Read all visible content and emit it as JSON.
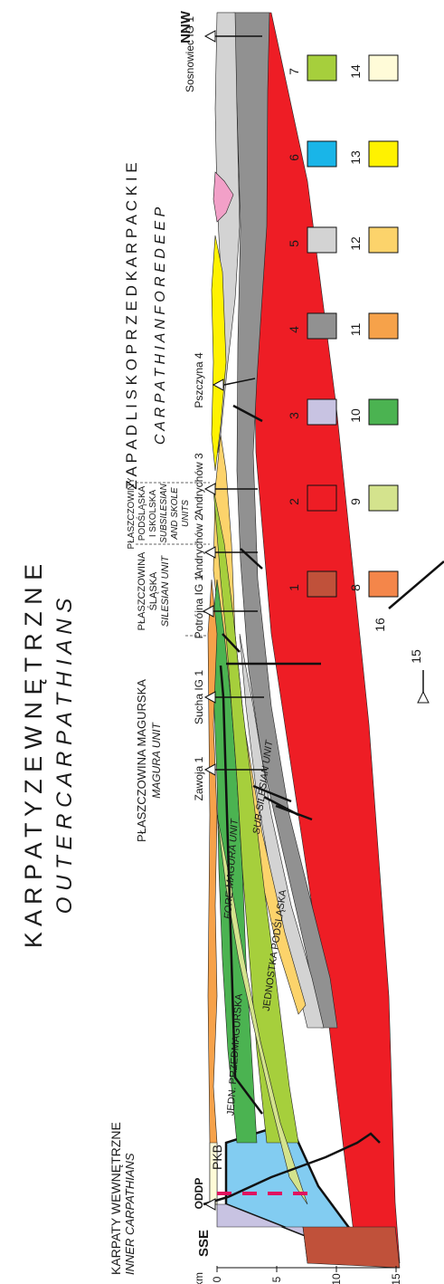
{
  "title": {
    "main_pl": "K A R P A T Y   Z E W N Ę T R Z N E",
    "main_en": "O U T E R   C A R P A T H I A N S",
    "foredeep_pl": "Z A P A D L I S K O   P R Z E D K A R P A C K I E",
    "foredeep_en": "C A R P A T H I A N   F O R E D E E P"
  },
  "regions": {
    "inner_pl": "KARPATY WEWNĘTRZNE",
    "inner_en": "INNER CARPATHIANS",
    "magura_pl": "PŁASZCZOWINA MAGURSKA",
    "magura_en": "MAGURA UNIT",
    "silesian_pl1": "PŁASZCZOWINA",
    "silesian_pl2": "ŚLĄSKA",
    "silesian_en": "SILESIAN UNIT",
    "subsil_pl1": "PŁASZCZOWINY",
    "subsil_pl2": "PODŚLĄSKA",
    "subsil_pl3": "I SKOLSKA",
    "subsil_en1": "SUBSILESIAN",
    "subsil_en2": "AND SKOLE",
    "subsil_en3": "UNITS"
  },
  "directions": {
    "south": "SSE",
    "north": "NNW"
  },
  "faults": {
    "pkb": "PKB",
    "oddp": "ODDP"
  },
  "units_in_section": {
    "fore_magura_pl": "JEDN. PRZEDMAGURSKA",
    "fore_magura_en": "FORE-MAGURA UNIT",
    "sub_silesian_pl": "JEDNOSTKA PODŚLĄSKA",
    "sub_silesian_en": "SUB-SILESIAN UNIT"
  },
  "wells": [
    "Zawoja 1",
    "Sucha IG 1",
    "Potrójna IG 1",
    "Andrychów 2",
    "Andrychów 3",
    "Pszczyna 4",
    "Sosnowiec IG 1"
  ],
  "depth_axis": {
    "unit": "km",
    "ticks": [
      "0",
      "5",
      "10",
      "15"
    ]
  },
  "legend": {
    "items": [
      {
        "num": "1",
        "color": "#c0513a"
      },
      {
        "num": "2",
        "color": "#ee1d25"
      },
      {
        "num": "3",
        "color": "#c8c3e2"
      },
      {
        "num": "4",
        "color": "#919191"
      },
      {
        "num": "5",
        "color": "#d3d3d3"
      },
      {
        "num": "6",
        "color": "#19b5e8"
      },
      {
        "num": "7",
        "color": "#a6cf3c"
      },
      {
        "num": "8",
        "color": "#f4864a"
      },
      {
        "num": "9",
        "color": "#d4e38d"
      },
      {
        "num": "10",
        "color": "#4bb351"
      },
      {
        "num": "11",
        "color": "#f6a24a"
      },
      {
        "num": "12",
        "color": "#fcd36b"
      },
      {
        "num": "13",
        "color": "#fff200"
      },
      {
        "num": "14",
        "color": "#fffbd8"
      }
    ],
    "well_symbol": "15",
    "fault_symbol": "16"
  }
}
